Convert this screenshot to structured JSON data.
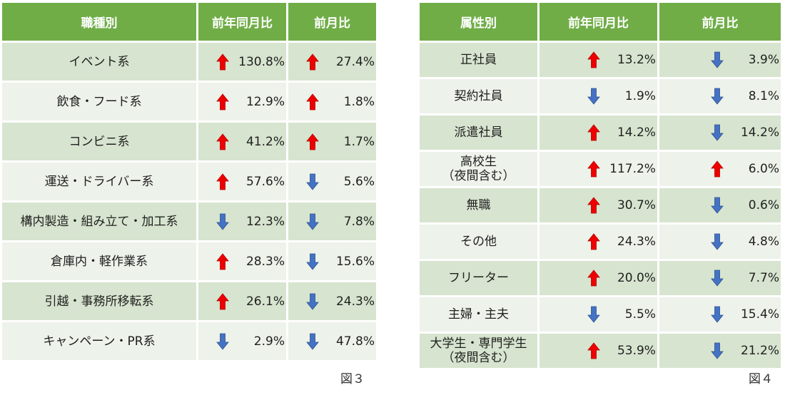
{
  "colors": {
    "header_bg": "#70ad47",
    "row_dark": "#d7e4cf",
    "row_light": "#edf2ea",
    "up": "#ee0000",
    "down": "#4472c4"
  },
  "figure3": {
    "caption": "図３",
    "headers": [
      "職種別",
      "前年同月比",
      "前月比"
    ],
    "rows": [
      {
        "label": "イベント系",
        "yoy": {
          "dir": "up",
          "value": "130.8%"
        },
        "mom": {
          "dir": "up",
          "value": "27.4%"
        }
      },
      {
        "label": "飲食・フード系",
        "yoy": {
          "dir": "up",
          "value": "12.9%"
        },
        "mom": {
          "dir": "up",
          "value": "1.8%"
        }
      },
      {
        "label": "コンビニ系",
        "yoy": {
          "dir": "up",
          "value": "41.2%"
        },
        "mom": {
          "dir": "up",
          "value": "1.7%"
        }
      },
      {
        "label": "運送・ドライバー系",
        "yoy": {
          "dir": "up",
          "value": "57.6%"
        },
        "mom": {
          "dir": "down",
          "value": "5.6%"
        }
      },
      {
        "label": "構内製造・組み立て・加工系",
        "yoy": {
          "dir": "down",
          "value": "12.3%"
        },
        "mom": {
          "dir": "down",
          "value": "7.8%"
        }
      },
      {
        "label": "倉庫内・軽作業系",
        "yoy": {
          "dir": "up",
          "value": "28.3%"
        },
        "mom": {
          "dir": "down",
          "value": "15.6%"
        }
      },
      {
        "label": "引越・事務所移転系",
        "yoy": {
          "dir": "up",
          "value": "26.1%"
        },
        "mom": {
          "dir": "down",
          "value": "24.3%"
        }
      },
      {
        "label": "キャンペーン・PR系",
        "yoy": {
          "dir": "down",
          "value": "2.9%"
        },
        "mom": {
          "dir": "down",
          "value": "47.8%"
        }
      }
    ]
  },
  "figure4": {
    "caption": "図４",
    "headers": [
      "属性別",
      "前年同月比",
      "前月比"
    ],
    "rows": [
      {
        "label": "正社員",
        "yoy": {
          "dir": "up",
          "value": "13.2%"
        },
        "mom": {
          "dir": "down",
          "value": "3.9%"
        }
      },
      {
        "label": "契約社員",
        "yoy": {
          "dir": "down",
          "value": "1.9%"
        },
        "mom": {
          "dir": "down",
          "value": "8.1%"
        }
      },
      {
        "label": "派遣社員",
        "yoy": {
          "dir": "up",
          "value": "14.2%"
        },
        "mom": {
          "dir": "down",
          "value": "14.2%"
        }
      },
      {
        "label": "高校生\n（夜間含む）",
        "yoy": {
          "dir": "up",
          "value": "117.2%"
        },
        "mom": {
          "dir": "up",
          "value": "6.0%"
        }
      },
      {
        "label": "無職",
        "yoy": {
          "dir": "up",
          "value": "30.7%"
        },
        "mom": {
          "dir": "down",
          "value": "0.6%"
        }
      },
      {
        "label": "その他",
        "yoy": {
          "dir": "up",
          "value": "24.3%"
        },
        "mom": {
          "dir": "down",
          "value": "4.8%"
        }
      },
      {
        "label": "フリーター",
        "yoy": {
          "dir": "up",
          "value": "20.0%"
        },
        "mom": {
          "dir": "down",
          "value": "7.7%"
        }
      },
      {
        "label": "主婦・主夫",
        "yoy": {
          "dir": "down",
          "value": "5.5%"
        },
        "mom": {
          "dir": "down",
          "value": "15.4%"
        }
      },
      {
        "label": "大学生・専門学生\n（夜間含む）",
        "yoy": {
          "dir": "up",
          "value": "53.9%"
        },
        "mom": {
          "dir": "down",
          "value": "21.2%"
        }
      }
    ]
  }
}
